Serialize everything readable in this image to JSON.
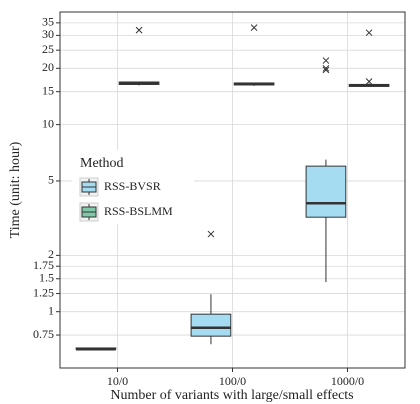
{
  "chart_data": {
    "type": "box",
    "x_label": "Number of variants with large/small effects",
    "y_label": "Time (unit: hour)",
    "categories": [
      "10/0",
      "100/0",
      "1000/0"
    ],
    "log_y": true,
    "ylim": [
      0.5,
      40
    ],
    "yticks": [
      0.75,
      1,
      1.25,
      1.5,
      1.75,
      2,
      5,
      10,
      15,
      20,
      25,
      30,
      35
    ],
    "grid": true,
    "legend_title": "Method",
    "series": [
      {
        "name": "RSS-BVSR",
        "color": "#a6dcf2",
        "boxes": [
          {
            "min": 0.62,
            "q1": 0.63,
            "median": 0.63,
            "q3": 0.64,
            "max": 0.64,
            "outliers": []
          },
          {
            "min": 0.67,
            "q1": 0.74,
            "median": 0.82,
            "q3": 0.97,
            "max": 1.24,
            "outliers": [
              2.6
            ]
          },
          {
            "min": 1.44,
            "q1": 3.2,
            "median": 3.8,
            "q3": 6.0,
            "max": 6.5,
            "outliers": [
              22,
              20,
              19.6
            ]
          }
        ]
      },
      {
        "name": "RSS-BSLMM",
        "color": "#7fc8a9",
        "boxes": [
          {
            "min": 16.2,
            "q1": 16.4,
            "median": 16.6,
            "q3": 16.9,
            "max": 17.0,
            "outliers": [
              32
            ]
          },
          {
            "min": 16.1,
            "q1": 16.3,
            "median": 16.5,
            "q3": 16.7,
            "max": 16.8,
            "outliers": [
              33
            ]
          },
          {
            "min": 15.9,
            "q1": 16.0,
            "median": 16.2,
            "q3": 16.4,
            "max": 16.6,
            "outliers": [
              31,
              17
            ]
          }
        ]
      }
    ]
  }
}
